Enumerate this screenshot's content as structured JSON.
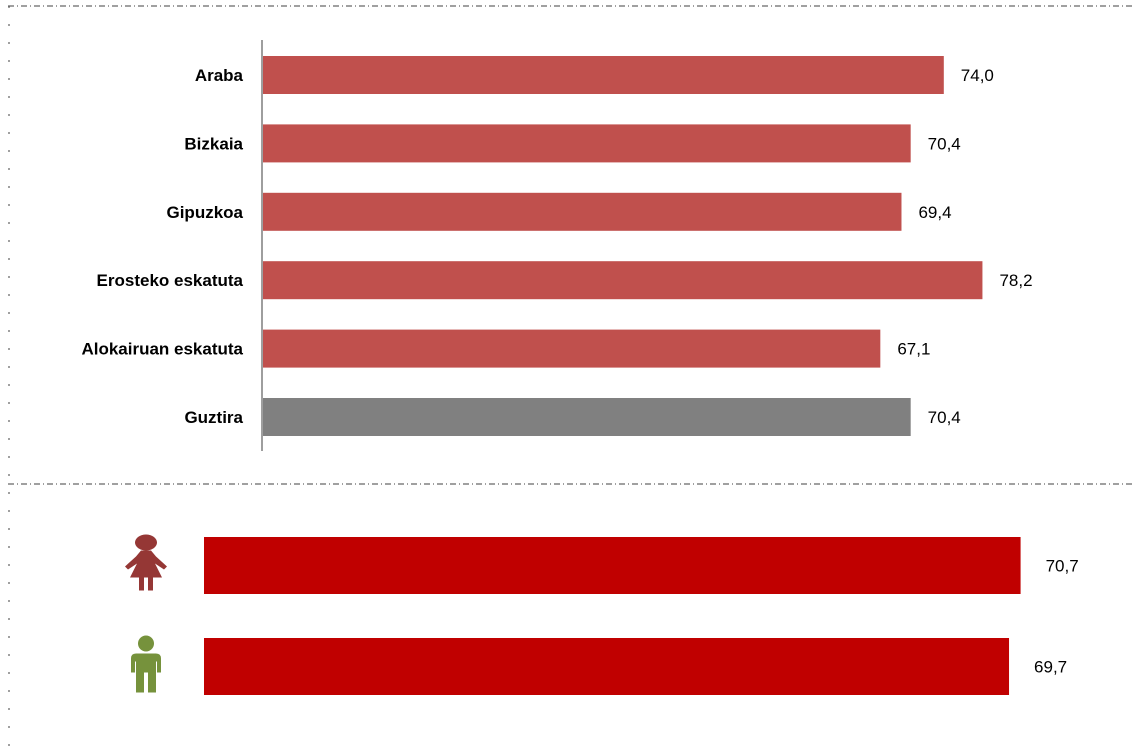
{
  "chart_data": [
    {
      "type": "bar",
      "orientation": "horizontal",
      "categories": [
        "Araba",
        "Bizkaia",
        "Gipuzkoa",
        "Erosteko eskatuta",
        "Alokairuan eskatuta",
        "Guztira"
      ],
      "values": [
        74.0,
        70.4,
        69.4,
        78.2,
        67.1,
        70.4
      ],
      "value_labels": [
        "74,0",
        "70,4",
        "69,4",
        "78,2",
        "67,1",
        "70,4"
      ],
      "colors": [
        "#c0504d",
        "#c0504d",
        "#c0504d",
        "#c0504d",
        "#c0504d",
        "#808080"
      ],
      "xlim": [
        0,
        100
      ],
      "grid": false,
      "legend": "none"
    },
    {
      "type": "bar",
      "orientation": "horizontal",
      "categories": [
        "woman-icon",
        "man-icon"
      ],
      "values": [
        70.7,
        69.7
      ],
      "value_labels": [
        "70,7",
        "69,7"
      ],
      "colors": [
        "#c00000",
        "#c00000"
      ],
      "icon_colors": [
        "#953735",
        "#76923c"
      ],
      "xlim": [
        0,
        100
      ],
      "grid": false,
      "legend": "none"
    }
  ]
}
